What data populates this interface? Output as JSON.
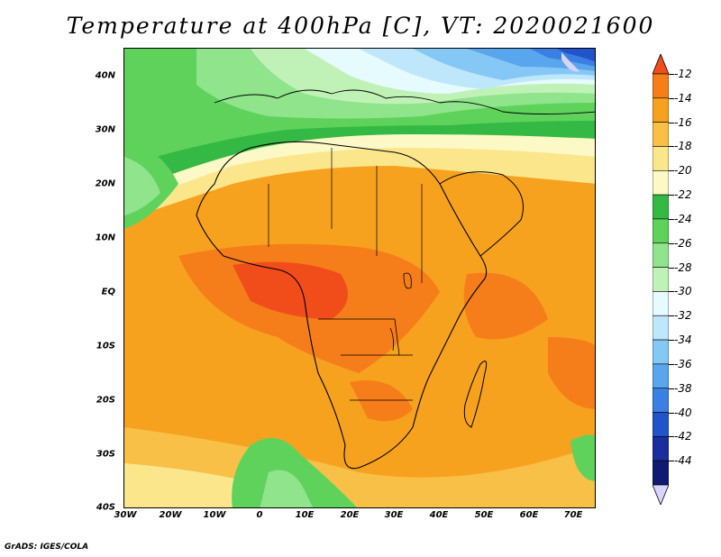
{
  "title": "Temperature at 400hPa [C], VT: 2020021600",
  "footer": "GrADS: IGES/COLA",
  "x_ticks": [
    "30W",
    "20W",
    "10W",
    "0",
    "10E",
    "20E",
    "30E",
    "40E",
    "50E",
    "60E",
    "70E"
  ],
  "y_ticks": [
    "40N",
    "30N",
    "20N",
    "10N",
    "EQ",
    "10S",
    "20S",
    "30S",
    "40S"
  ],
  "colorbar": {
    "labels": [
      "-12",
      "-14",
      "-16",
      "-18",
      "-20",
      "-22",
      "-24",
      "-26",
      "-28",
      "-30",
      "-32",
      "-34",
      "-36",
      "-38",
      "-40",
      "-42",
      "-44"
    ],
    "colors": [
      "#f04d1a",
      "#f57e1a",
      "#f7a21e",
      "#f8c046",
      "#fbe68c",
      "#fdf9c6",
      "#34b944",
      "#5fd25c",
      "#8fe48c",
      "#c0f2b8",
      "#e6fbfd",
      "#bfe7fb",
      "#86c8f5",
      "#5aa6ee",
      "#3b7fe3",
      "#2054c8",
      "#1a2e9e",
      "#0f1a70",
      "#d8d4ff"
    ]
  },
  "chart_data": {
    "type": "heatmap",
    "title": "Temperature at 400hPa [C], VT: 2020021600",
    "x_range": [
      "30W",
      "75E"
    ],
    "y_range": [
      "40S",
      "45N"
    ],
    "x_tick_labels": [
      "30W",
      "20W",
      "10W",
      "0",
      "10E",
      "20E",
      "30E",
      "40E",
      "50E",
      "60E",
      "70E"
    ],
    "y_tick_labels": [
      "40N",
      "30N",
      "20N",
      "10N",
      "EQ",
      "10S",
      "20S",
      "30S",
      "40S"
    ],
    "legend_placement": "right",
    "value_range": [
      -44,
      -12
    ],
    "colorbar_levels": [
      -12,
      -14,
      -16,
      -18,
      -20,
      -22,
      -24,
      -26,
      -28,
      -30,
      -32,
      -34,
      -36,
      -38,
      -40,
      -42,
      -44
    ]
  }
}
